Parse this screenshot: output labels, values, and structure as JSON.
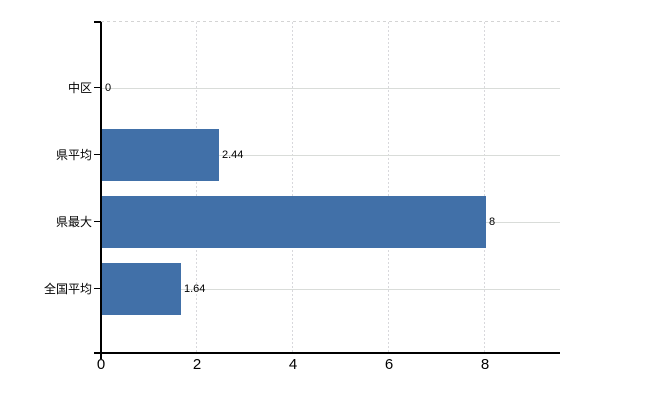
{
  "chart_data": {
    "type": "bar",
    "orientation": "horizontal",
    "title": "",
    "categories": [
      "中区",
      "県平均",
      "県最大",
      "全国平均"
    ],
    "values": [
      0,
      2.44,
      8,
      1.64
    ],
    "value_labels": [
      "0",
      "2.44",
      "8",
      "1.64"
    ],
    "x_ticks": [
      0,
      2,
      4,
      6,
      8
    ],
    "xlim": [
      0,
      9.5
    ],
    "grid": true,
    "gridline_style": {
      "vertical": "dashed",
      "horizontal": "solid",
      "plot_top_border": "dashed"
    },
    "legend": "none",
    "bar_color": "#4170a8",
    "gridline_color": "#d9dcd9",
    "axis_color": "#000000",
    "label_color": "#000000",
    "background_color": "#ffffff"
  }
}
